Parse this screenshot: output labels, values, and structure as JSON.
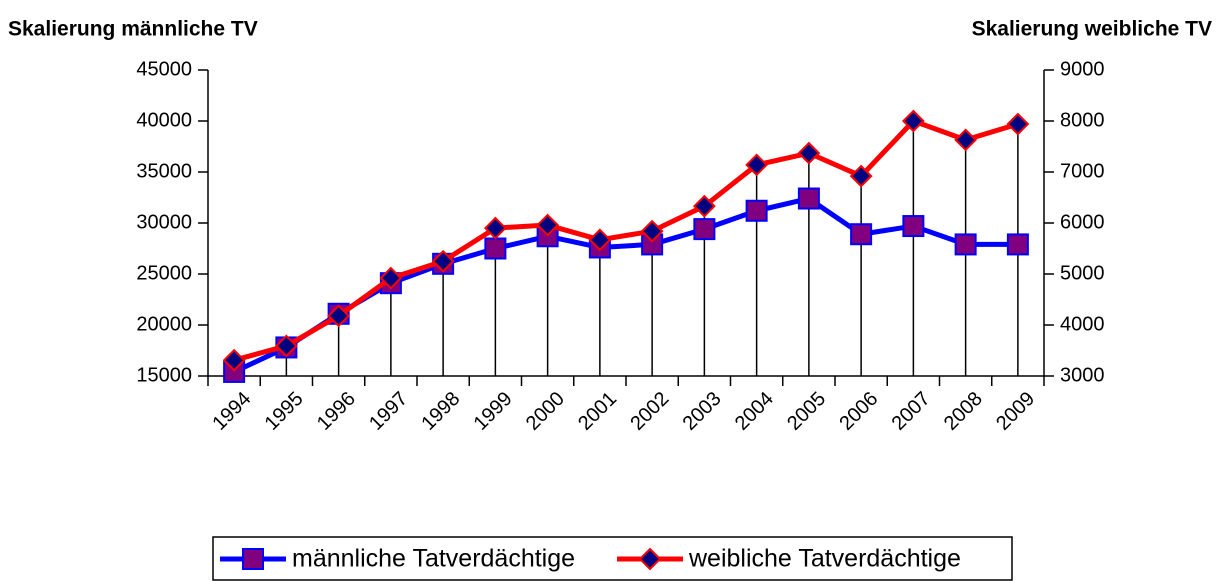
{
  "chart_data": {
    "type": "line",
    "y_title": "Skalierung männliche TV",
    "y2_title": "Skalierung weibliche TV",
    "categories": [
      "1994",
      "1995",
      "1996",
      "1997",
      "1998",
      "1999",
      "2000",
      "2001",
      "2002",
      "2003",
      "2004",
      "2005",
      "2006",
      "2007",
      "2008",
      "2009"
    ],
    "series": [
      {
        "name": "männliche Tatverdächtige",
        "color": "#0000ff",
        "marker_color": "#800080",
        "marker": "square",
        "values": [
          15400,
          17800,
          21100,
          24100,
          26000,
          27500,
          28700,
          27600,
          27900,
          29400,
          31200,
          32400,
          28900,
          29700,
          27900,
          27900
        ]
      },
      {
        "name": "weibliche Tatverdächtige",
        "color": "#ff0000",
        "marker_color": "#000080",
        "marker": "diamond",
        "axis": "y2",
        "values": [
          3310,
          3590,
          4180,
          4920,
          5250,
          5900,
          5960,
          5670,
          5840,
          6330,
          7140,
          7370,
          6920,
          8000,
          7630,
          7940
        ]
      }
    ],
    "ylim": [
      15000,
      45000
    ],
    "yticks": [
      15000,
      20000,
      25000,
      30000,
      35000,
      40000,
      45000
    ],
    "y2lim": [
      3000,
      9000
    ],
    "y2ticks": [
      3000,
      4000,
      5000,
      6000,
      7000,
      8000,
      9000
    ],
    "drop_lines": true,
    "legend": "bottom"
  }
}
